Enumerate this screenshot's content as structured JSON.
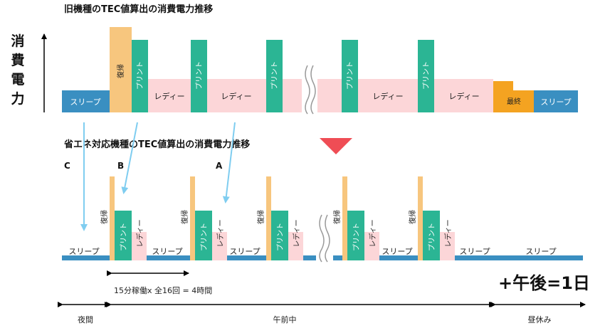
{
  "top_title": "旧機種のTEC値算出の消費電力推移",
  "bottom_title": "省エネ対応機種のTEC値算出の消費電力推移",
  "axis_label": "消費電力",
  "labels": {
    "sleep": "スリープ",
    "recover": "復帰",
    "print": "プリント",
    "ready": "レディー",
    "final": "最終"
  },
  "markers": {
    "a": "A",
    "b": "B",
    "c": "C"
  },
  "duration_note": "15分稼働x 全16回 = 4時間",
  "plus_day": "+午後=1日",
  "periods": {
    "night": "夜間",
    "morning": "午前中",
    "lunch": "昼休み"
  },
  "colors": {
    "sleep": "#3a8fc1",
    "recover": "#f7c67e",
    "print": "#2bb594",
    "ready": "#fcd6d8",
    "final": "#f4a321",
    "arrow": "#7fcdf0",
    "marker": "#ef4d55"
  }
}
